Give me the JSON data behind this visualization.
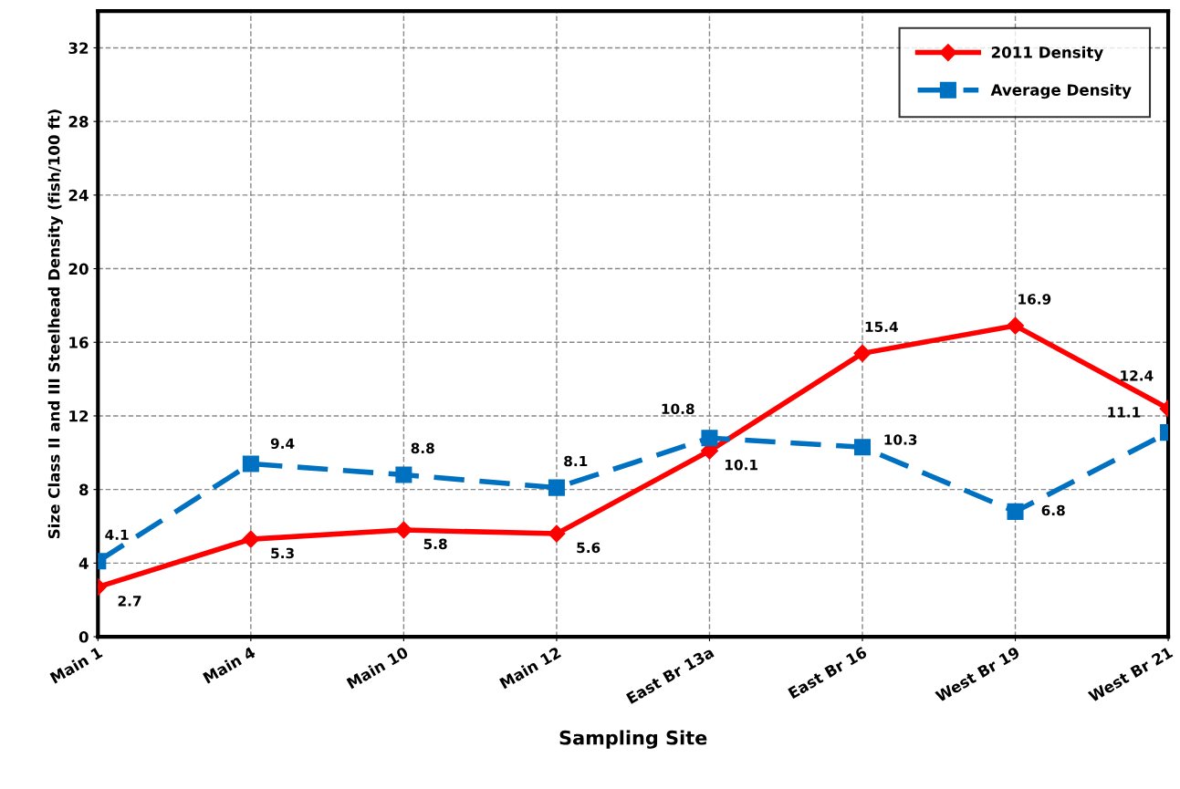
{
  "chart_data": {
    "type": "line",
    "xlabel": "Sampling Site",
    "ylabel": "Size Class II and III Steelhead Density (fish/100 ft)",
    "categories": [
      "Main 1",
      "Main 4",
      "Main 10",
      "Main 12",
      "East Br 13a",
      "East Br 16",
      "West Br 19",
      "West Br 21"
    ],
    "series": [
      {
        "name": "2011 Density",
        "color": "#ff0000",
        "marker": "diamond",
        "line_style": "solid",
        "values": [
          2.7,
          5.3,
          5.8,
          5.6,
          10.1,
          15.4,
          16.9,
          12.4
        ]
      },
      {
        "name": "Average Density",
        "color": "#0070c0",
        "marker": "square",
        "line_style": "dashed",
        "values": [
          4.1,
          9.4,
          8.8,
          8.1,
          10.8,
          10.3,
          6.8,
          11.1
        ]
      }
    ],
    "ylim": [
      0,
      34
    ],
    "yticks": [
      0,
      4,
      8,
      12,
      16,
      20,
      24,
      28,
      32
    ],
    "grid": true,
    "legend": "top right",
    "data_labels": true
  }
}
